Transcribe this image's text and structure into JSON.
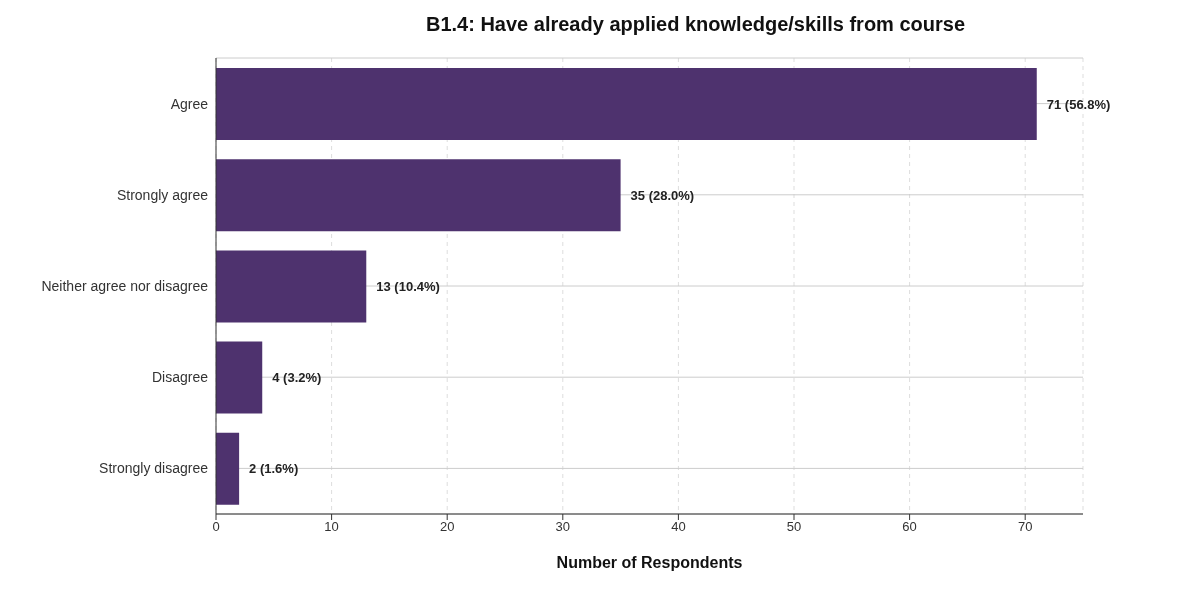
{
  "chart_data": {
    "type": "bar",
    "orientation": "horizontal",
    "title": "B1.4: Have already applied knowledge/skills from course",
    "xlabel": "Number of Respondents",
    "categories": [
      "Agree",
      "Strongly agree",
      "Neither agree nor disagree",
      "Disagree",
      "Strongly disagree"
    ],
    "values": [
      71,
      35,
      13,
      4,
      2
    ],
    "value_labels": [
      "71 (56.8%)",
      "35 (28.0%)",
      "13 (10.4%)",
      "4 (3.2%)",
      "2 (1.6%)"
    ],
    "color": "#4e326e",
    "xlim": [
      0,
      75
    ],
    "xticks": [
      0,
      10,
      20,
      30,
      40,
      50,
      60,
      70
    ],
    "grid": true
  }
}
